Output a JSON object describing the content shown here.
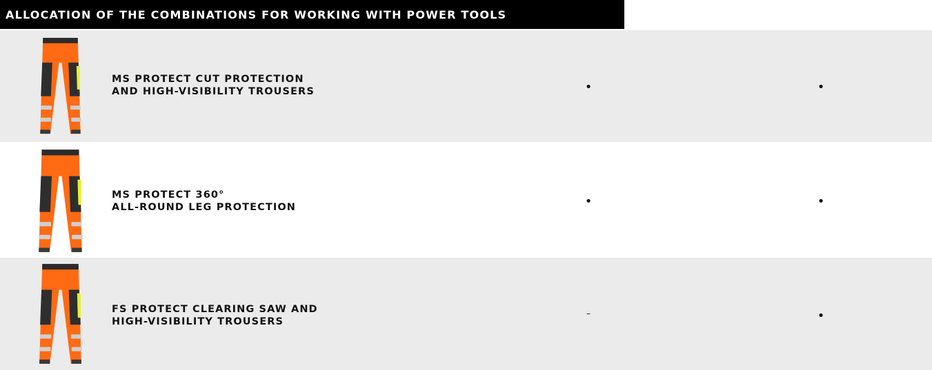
{
  "header": {
    "title": "ALLOCATION OF THE COMBINATIONS FOR WORKING WITH POWER TOOLS"
  },
  "table": {
    "rows": [
      {
        "label_lines": [
          "MS PROTECT CUT PROTECTION",
          "AND HIGH-VISIBILITY TROUSERS"
        ],
        "cells": [
          "•",
          "•"
        ]
      },
      {
        "label_lines": [
          "MS PROTECT 360°",
          "ALL-ROUND LEG PROTECTION"
        ],
        "cells": [
          "•",
          "•"
        ]
      },
      {
        "label_lines": [
          "FS PROTECT CLEARING SAW AND",
          "HIGH-VISIBILITY TROUSERS"
        ],
        "cells": [
          "–",
          "•"
        ]
      }
    ]
  }
}
